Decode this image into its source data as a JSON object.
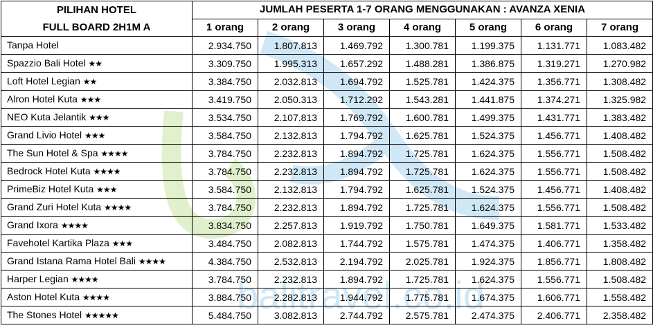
{
  "header": {
    "title_line1": "PILIHAN HOTEL",
    "title_line2": "FULL BOARD 2H1M A",
    "group_title": "JUMLAH PESERTA 1-7 ORANG MENGGUNAKAN : AVANZA XENIA",
    "columns": [
      "1 orang",
      "2 orang",
      "3 orang",
      "4 orang",
      "5 orang",
      "6 orang",
      "7 orang"
    ]
  },
  "rows": [
    {
      "hotel": "Tanpa Hotel",
      "stars": "",
      "prices": [
        "2.934.750",
        "1.807.813",
        "1.469.792",
        "1.300.781",
        "1.199.375",
        "1.131.771",
        "1.083.482"
      ]
    },
    {
      "hotel": "Spazzio Bali Hotel",
      "stars": "★★",
      "prices": [
        "3.309.750",
        "1.995.313",
        "1.657.292",
        "1.488.281",
        "1.386.875",
        "1.319.271",
        "1.270.982"
      ]
    },
    {
      "hotel": "Loft Hotel Legian",
      "stars": "★★",
      "prices": [
        "3.384.750",
        "2.032.813",
        "1.694.792",
        "1.525.781",
        "1.424.375",
        "1.356.771",
        "1.308.482"
      ]
    },
    {
      "hotel": "Alron Hotel Kuta",
      "stars": "★★★",
      "prices": [
        "3.419.750",
        "2.050.313",
        "1.712.292",
        "1.543.281",
        "1.441.875",
        "1.374.271",
        "1.325.982"
      ]
    },
    {
      "hotel": "NEO Kuta Jelantik",
      "stars": "★★★",
      "prices": [
        "3.534.750",
        "2.107.813",
        "1.769.792",
        "1.600.781",
        "1.499.375",
        "1.431.771",
        "1.383.482"
      ]
    },
    {
      "hotel": "Grand Livio Hotel",
      "stars": "★★★",
      "prices": [
        "3.584.750",
        "2.132.813",
        "1.794.792",
        "1.625.781",
        "1.524.375",
        "1.456.771",
        "1.408.482"
      ]
    },
    {
      "hotel": "The Sun Hotel & Spa",
      "stars": "★★★★",
      "prices": [
        "3.784.750",
        "2.232.813",
        "1.894.792",
        "1.725.781",
        "1.624.375",
        "1.556.771",
        "1.508.482"
      ]
    },
    {
      "hotel": "Bedrock Hotel Kuta",
      "stars": "★★★★",
      "prices": [
        "3.784.750",
        "2.232.813",
        "1.894.792",
        "1.725.781",
        "1.624.375",
        "1.556.771",
        "1.508.482"
      ]
    },
    {
      "hotel": "PrimeBiz Hotel Kuta",
      "stars": "★★★",
      "prices": [
        "3.584.750",
        "2.132.813",
        "1.794.792",
        "1.625.781",
        "1.524.375",
        "1.456.771",
        "1.408.482"
      ]
    },
    {
      "hotel": "Grand Zuri Hotel Kuta",
      "stars": "★★★★",
      "prices": [
        "3.784.750",
        "2.232.813",
        "1.894.792",
        "1.725.781",
        "1.624.375",
        "1.556.771",
        "1.508.482"
      ]
    },
    {
      "hotel": "Grand Ixora",
      "stars": "★★★★",
      "prices": [
        "3.834.750",
        "2.257.813",
        "1.919.792",
        "1.750.781",
        "1.649.375",
        "1.581.771",
        "1.533.482"
      ]
    },
    {
      "hotel": "Favehotel Kartika Plaza",
      "stars": "★★★",
      "prices": [
        "3.484.750",
        "2.082.813",
        "1.744.792",
        "1.575.781",
        "1.474.375",
        "1.406.771",
        "1.358.482"
      ]
    },
    {
      "hotel": "Grand Istana Rama Hotel Bali",
      "stars": "★★★★",
      "prices": [
        "4.384.750",
        "2.532.813",
        "2.194.792",
        "2.025.781",
        "1.924.375",
        "1.856.771",
        "1.808.482"
      ]
    },
    {
      "hotel": "Harper Legian",
      "stars": "★★★★",
      "prices": [
        "3.784.750",
        "2.232.813",
        "1.894.792",
        "1.725.781",
        "1.624.375",
        "1.556.771",
        "1.508.482"
      ]
    },
    {
      "hotel": "Aston Hotel Kuta",
      "stars": "★★★★",
      "prices": [
        "3.884.750",
        "2.282.813",
        "1.944.792",
        "1.775.781",
        "1.674.375",
        "1.606.771",
        "1.558.482"
      ]
    },
    {
      "hotel": "The Stones Hotel",
      "stars": "★★★★★",
      "prices": [
        "5.484.750",
        "3.082.813",
        "2.744.792",
        "2.575.781",
        "2.474.375",
        "2.406.771",
        "2.358.482"
      ]
    }
  ],
  "watermark": {
    "text": "balitravel.co.id",
    "colors": {
      "blue": "#a9d4ef",
      "green": "#c7e5a3"
    }
  }
}
